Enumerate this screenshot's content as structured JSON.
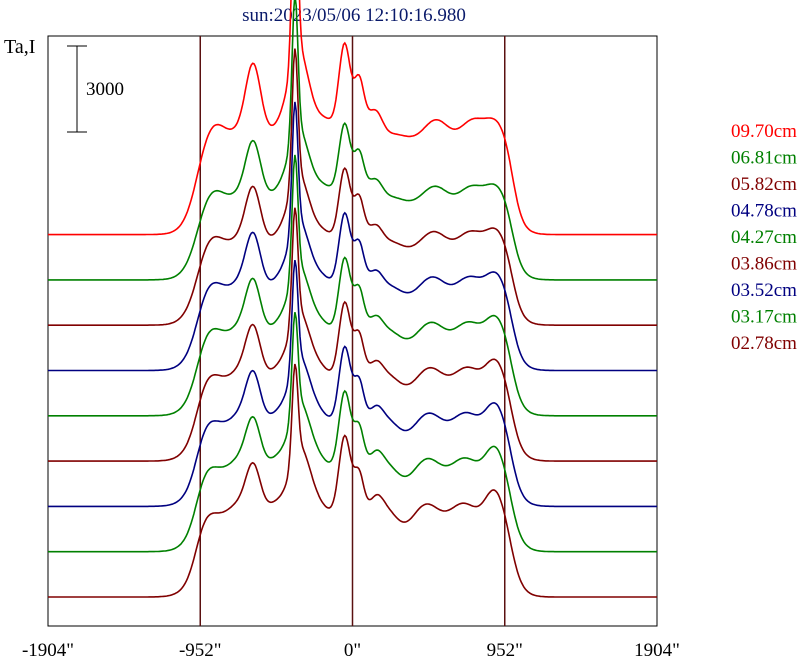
{
  "chart_data": {
    "type": "line",
    "title": "sun:2023/05/06 12:10:16.980",
    "ylabel": "Ta,I",
    "scale_bar_label": "3000",
    "x_ticks": [
      {
        "value": -1904,
        "label": "-1904\""
      },
      {
        "value": -952,
        "label": "-952\""
      },
      {
        "value": 0,
        "label": "0\""
      },
      {
        "value": 952,
        "label": "952\""
      },
      {
        "value": 1904,
        "label": "1904\""
      }
    ],
    "xlim": [
      -1904,
      1904
    ],
    "vertical_lines": [
      -952,
      0,
      952
    ],
    "legend_position": "right",
    "series": [
      {
        "name": "09.70cm",
        "color": "#ff0000",
        "baseline": 9.0
      },
      {
        "name": "06.81cm",
        "color": "#008000",
        "baseline": 8.0
      },
      {
        "name": "05.82cm",
        "color": "#800000",
        "baseline": 7.0
      },
      {
        "name": "04.78cm",
        "color": "#000080",
        "baseline": 6.0
      },
      {
        "name": "04.27cm",
        "color": "#008000",
        "baseline": 5.0
      },
      {
        "name": "03.86cm",
        "color": "#800000",
        "baseline": 4.0
      },
      {
        "name": "03.52cm",
        "color": "#000080",
        "baseline": 3.0
      },
      {
        "name": "03.17cm",
        "color": "#008000",
        "baseline": 2.0
      },
      {
        "name": "02.78cm",
        "color": "#800000",
        "baseline": 1.0
      }
    ]
  }
}
